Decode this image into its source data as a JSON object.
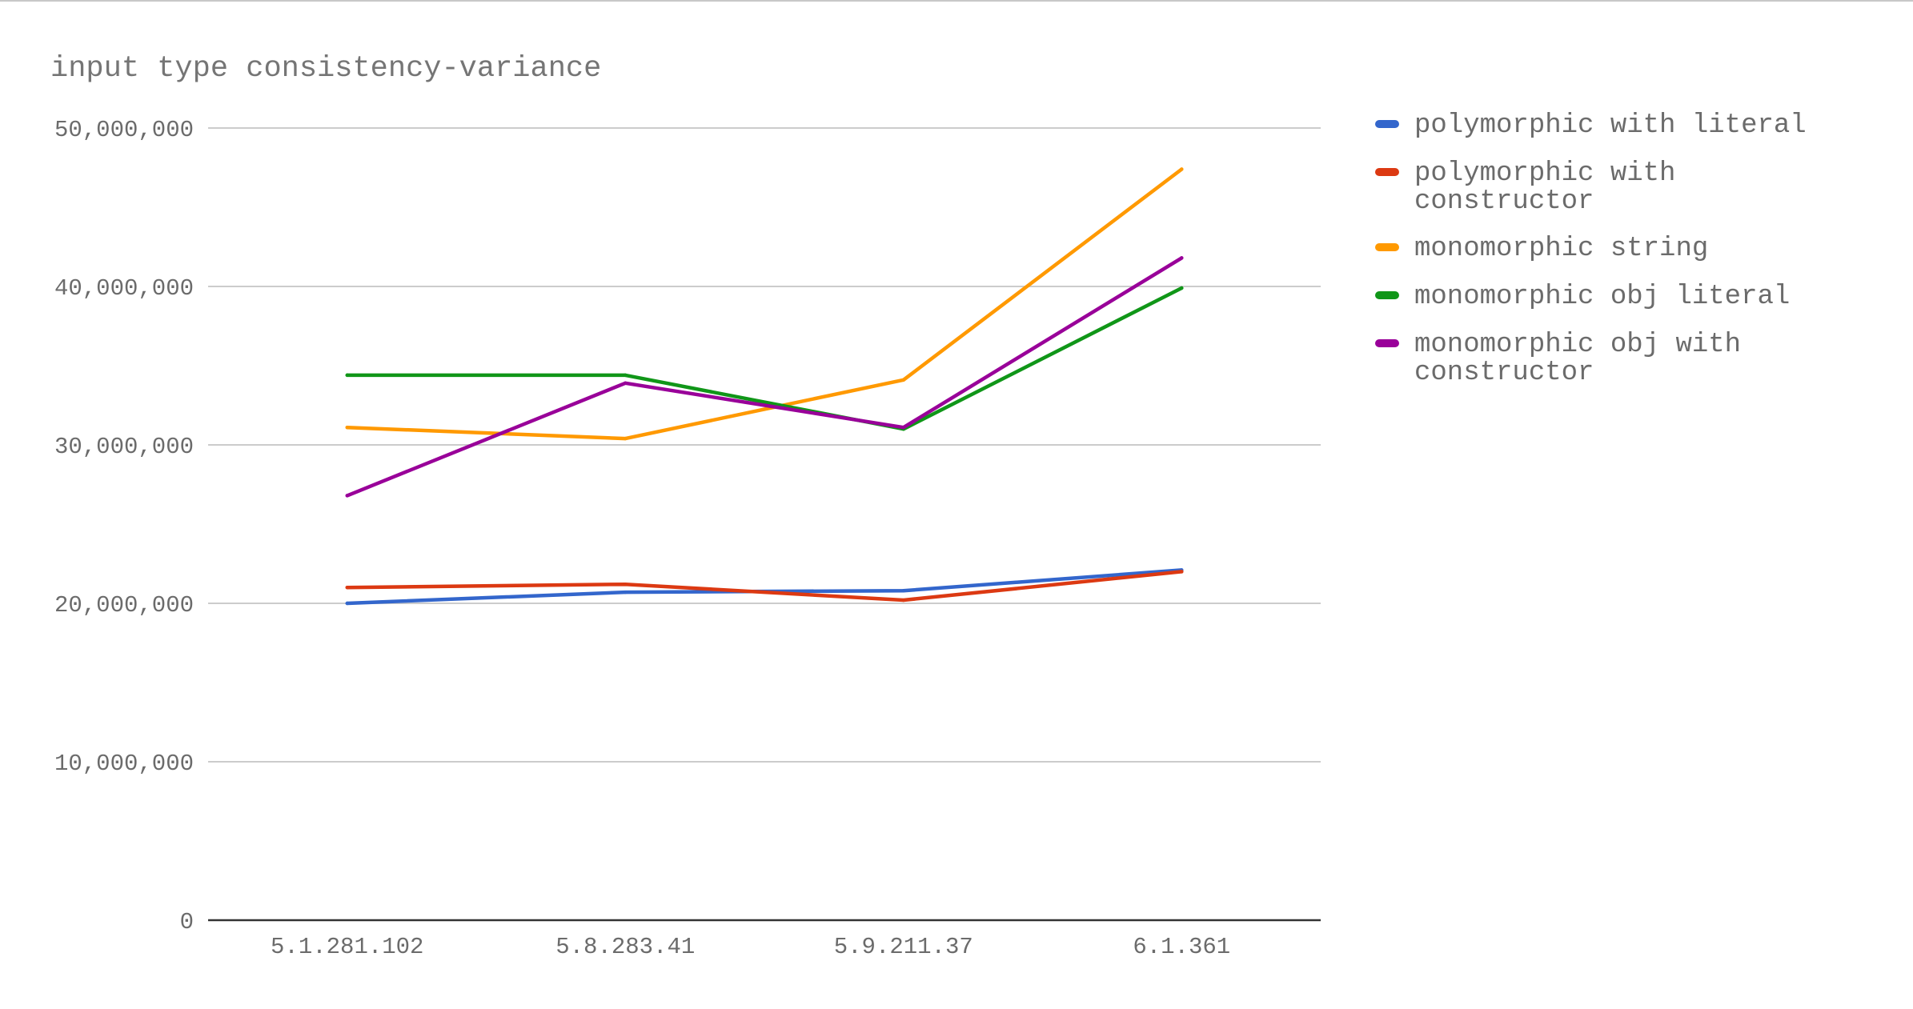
{
  "chart_data": {
    "type": "line",
    "title": "input type consistency-variance",
    "xlabel": "",
    "ylabel": "",
    "categories": [
      "5.1.281.102",
      "5.8.283.41",
      "5.9.211.37",
      "6.1.361"
    ],
    "ylim": [
      0,
      50000000
    ],
    "yticks": [
      {
        "value": 0,
        "label": "0"
      },
      {
        "value": 10000000,
        "label": "10,000,000"
      },
      {
        "value": 20000000,
        "label": "20,000,000"
      },
      {
        "value": 30000000,
        "label": "30,000,000"
      },
      {
        "value": 40000000,
        "label": "40,000,000"
      },
      {
        "value": 50000000,
        "label": "50,000,000"
      }
    ],
    "grid": true,
    "legend_position": "right",
    "series": [
      {
        "name": "polymorphic with literal",
        "legend_lines": [
          "polymorphic with literal"
        ],
        "color": "#3366cc",
        "values": [
          20000000,
          20700000,
          20800000,
          22100000
        ]
      },
      {
        "name": "polymorphic with constructor",
        "legend_lines": [
          "polymorphic with",
          "constructor"
        ],
        "color": "#dc3912",
        "values": [
          21000000,
          21200000,
          20200000,
          22000000
        ]
      },
      {
        "name": "monomorphic string",
        "legend_lines": [
          "monomorphic string"
        ],
        "color": "#ff9900",
        "values": [
          31100000,
          30400000,
          34100000,
          47400000
        ]
      },
      {
        "name": "monomorphic obj literal",
        "legend_lines": [
          "monomorphic obj literal"
        ],
        "color": "#109618",
        "values": [
          34400000,
          34400000,
          31000000,
          39900000
        ]
      },
      {
        "name": "monomorphic obj with constructor",
        "legend_lines": [
          "monomorphic obj with",
          "constructor"
        ],
        "color": "#990099",
        "values": [
          26800000,
          33900000,
          31100000,
          41800000
        ]
      }
    ]
  }
}
